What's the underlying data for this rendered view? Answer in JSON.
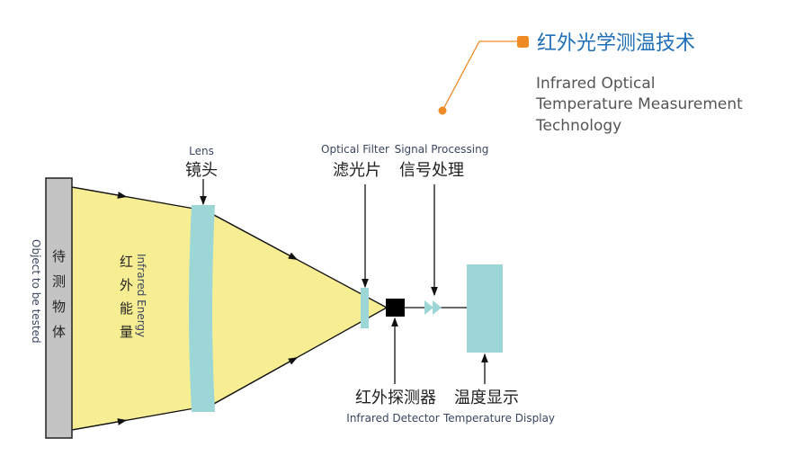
{
  "title": {
    "cn": "红外光学测温技术",
    "en_lines": [
      "Infrared Optical",
      "Temperature Measurement",
      "Technology"
    ],
    "accent": "#f08a24",
    "title_color": "#1f6fb8"
  },
  "object": {
    "cn_chars": [
      "待",
      "测",
      "物",
      "体"
    ],
    "en": "Object to be tested"
  },
  "energy": {
    "cn_chars": [
      "红",
      "外",
      "能",
      "量"
    ],
    "en": "Infrared Energy"
  },
  "lens": {
    "en": "Lens",
    "cn": "镜头"
  },
  "filter": {
    "en": "Optical Filter",
    "cn": "滤光片"
  },
  "signal": {
    "en": "Signal Processing",
    "cn": "信号处理"
  },
  "detector": {
    "cn": "红外探测器",
    "en": "Infrared Detector"
  },
  "display": {
    "cn": "温度显示",
    "en": "Temperature Display"
  },
  "colors": {
    "beam": "#f7ee94",
    "optic": "#9dd6d6",
    "object": "#c4c4c4"
  }
}
